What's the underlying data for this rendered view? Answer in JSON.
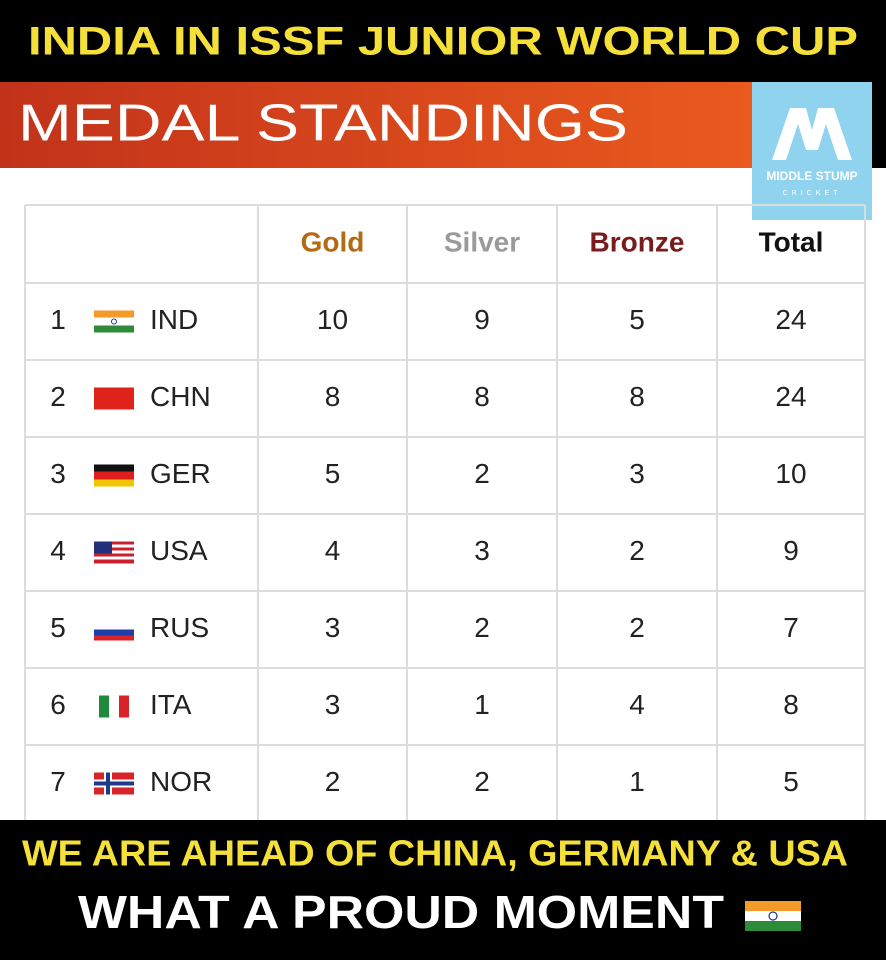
{
  "header": {
    "title": "INDIA IN ISSF JUNIOR WORLD CUP"
  },
  "banner": {
    "title": "MEDAL STANDINGS"
  },
  "logo": {
    "name": "MIDDLE STUMP",
    "sub": "CRICKET"
  },
  "table": {
    "columns": [
      "Gold",
      "Silver",
      "Bronze",
      "Total"
    ],
    "rows": [
      {
        "rank": 1,
        "country": "IND",
        "gold": 10,
        "silver": 9,
        "bronze": 5,
        "total": 24
      },
      {
        "rank": 2,
        "country": "CHN",
        "gold": 8,
        "silver": 8,
        "bronze": 8,
        "total": 24
      },
      {
        "rank": 3,
        "country": "GER",
        "gold": 5,
        "silver": 2,
        "bronze": 3,
        "total": 10
      },
      {
        "rank": 4,
        "country": "USA",
        "gold": 4,
        "silver": 3,
        "bronze": 2,
        "total": 9
      },
      {
        "rank": 5,
        "country": "RUS",
        "gold": 3,
        "silver": 2,
        "bronze": 2,
        "total": 7
      },
      {
        "rank": 6,
        "country": "ITA",
        "gold": 3,
        "silver": 1,
        "bronze": 4,
        "total": 8
      },
      {
        "rank": 7,
        "country": "NOR",
        "gold": 2,
        "silver": 2,
        "bronze": 1,
        "total": 5
      }
    ]
  },
  "footer": {
    "line1": "WE ARE AHEAD OF CHINA, GERMANY & USA",
    "line2": "WHAT A PROUD MOMENT"
  }
}
